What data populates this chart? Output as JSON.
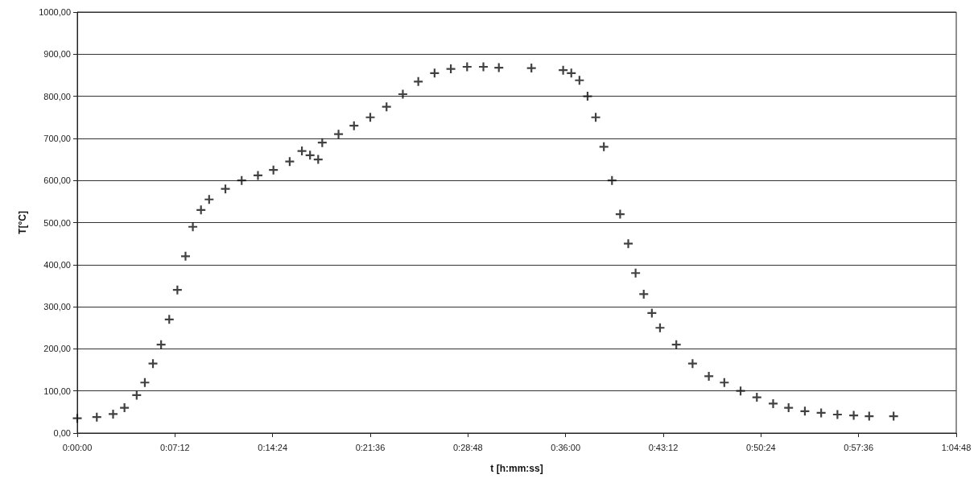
{
  "chart_data": {
    "type": "scatter",
    "xlabel": "t [h:mm:ss]",
    "ylabel": "T[°C]",
    "marker": "cross",
    "grid": "y",
    "x": [
      0,
      0.024,
      0.044,
      0.058,
      0.073,
      0.083,
      0.093,
      0.103,
      0.113,
      0.123,
      0.133,
      0.142,
      0.152,
      0.162,
      0.182,
      0.202,
      0.222,
      0.241,
      0.261,
      0.276,
      0.286,
      0.296,
      0.301,
      0.321,
      0.34,
      0.36,
      0.38,
      0.4,
      0.419,
      0.439,
      0.459,
      0.479,
      0.499,
      0.518,
      0.558,
      0.597,
      0.607,
      0.617,
      0.627,
      0.637,
      0.647,
      0.657,
      0.667,
      0.677,
      0.686,
      0.696,
      0.706,
      0.716,
      0.736,
      0.756,
      0.776,
      0.795,
      0.815,
      0.835,
      0.855,
      0.874,
      0.894,
      0.914,
      0.934,
      0.954,
      0.973,
      1.003
    ],
    "series": [
      {
        "color": "#111111",
        "values": [
          35,
          38,
          45,
          60,
          90,
          120,
          165,
          210,
          270,
          340,
          420,
          490,
          530,
          555,
          580,
          600,
          612,
          625,
          645,
          670,
          660,
          650,
          690,
          710,
          730,
          750,
          775,
          805,
          835,
          855,
          865,
          870,
          870,
          868,
          867,
          862,
          855,
          838,
          800,
          750,
          680,
          600,
          520,
          450,
          380,
          330,
          285,
          250,
          210,
          165,
          135,
          120,
          100,
          85,
          70,
          60,
          52,
          48,
          44,
          42,
          40,
          40
        ]
      }
    ],
    "xlim": [
      0,
      1.08
    ],
    "xticks": [
      {
        "value": 0,
        "label": "0:00:00"
      },
      {
        "value": 0.12,
        "label": "0:07:12"
      },
      {
        "value": 0.24,
        "label": "0:14:24"
      },
      {
        "value": 0.36,
        "label": "0:21:36"
      },
      {
        "value": 0.48,
        "label": "0:28:48"
      },
      {
        "value": 0.6,
        "label": "0:36:00"
      },
      {
        "value": 0.72,
        "label": "0:43:12"
      },
      {
        "value": 0.84,
        "label": "0:50:24"
      },
      {
        "value": 0.96,
        "label": "0:57:36"
      },
      {
        "value": 1.08,
        "label": "1:04:48"
      }
    ],
    "ylim": [
      0,
      1000
    ],
    "yticks": [
      {
        "value": 0,
        "label": "0,00"
      },
      {
        "value": 100,
        "label": "100,00"
      },
      {
        "value": 200,
        "label": "200,00"
      },
      {
        "value": 300,
        "label": "300,00"
      },
      {
        "value": 400,
        "label": "400,00"
      },
      {
        "value": 500,
        "label": "500,00"
      },
      {
        "value": 600,
        "label": "600,00"
      },
      {
        "value": 700,
        "label": "700,00"
      },
      {
        "value": 800,
        "label": "800,00"
      },
      {
        "value": 900,
        "label": "900,00"
      },
      {
        "value": 1000,
        "label": "1000,00"
      }
    ]
  }
}
